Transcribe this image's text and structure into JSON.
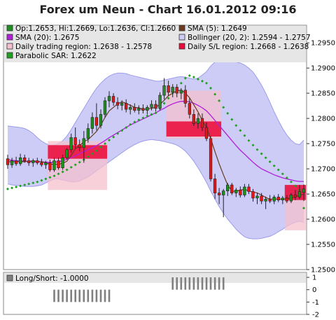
{
  "chart": {
    "title": "Forex um Neun - Chart 16.01.2012 09:16"
  },
  "colors": {
    "bull": "#1f8f1f",
    "bear": "#e01818",
    "sma5": "#6b3a1f",
    "sma20": "#b020d8",
    "bollinger_fill": "#ccccf6",
    "bollinger_edge": "#9c9cec",
    "trading_region": "#f6c0ce",
    "sl_region": "#ea0b3a",
    "sar": "#1fa01f",
    "legend_bg": "#e6e6e6",
    "longshort_bar": "#808080"
  },
  "chart_data": [
    {
      "type": "candlestick",
      "legend": [
        {
          "label": "Op:1.2653, Hi:1.2669, Lo:1.2636, Cl:1.2660",
          "swatch": "ohlc-icon"
        },
        {
          "label": "SMA (5): 1.2649",
          "swatch": "sma5-icon"
        },
        {
          "label": "SMA (20): 1.2675",
          "swatch": "sma20-icon"
        },
        {
          "label": "Bollinger (20, 2): 1.2594 - 1.2757",
          "swatch": "bollinger-icon"
        },
        {
          "label": "Daily trading region: 1.2638 - 1.2578",
          "swatch": "trading-region-icon"
        },
        {
          "label": "Daily S/L region: 1.2668 - 1.2638",
          "swatch": "sl-region-icon"
        },
        {
          "label": "Parabolic SAR: 1.2622",
          "swatch": "sar-icon"
        }
      ],
      "ylim": [
        1.25,
        1.2985
      ],
      "yticks": [
        "1.2500",
        "1.2550",
        "1.2600",
        "1.2650",
        "1.2700",
        "1.2750",
        "1.2800",
        "1.2850",
        "1.2900",
        "1.2950"
      ],
      "ohlc": [
        [
          1.272,
          1.2728,
          1.27,
          1.2708
        ],
        [
          1.2708,
          1.2722,
          1.2702,
          1.2716
        ],
        [
          1.2716,
          1.2724,
          1.2706,
          1.271
        ],
        [
          1.271,
          1.273,
          1.2706,
          1.2722
        ],
        [
          1.2722,
          1.2728,
          1.2712,
          1.2716
        ],
        [
          1.2716,
          1.2722,
          1.2706,
          1.2712
        ],
        [
          1.2712,
          1.272,
          1.2704,
          1.2716
        ],
        [
          1.2716,
          1.2722,
          1.2708,
          1.2712
        ],
        [
          1.2712,
          1.272,
          1.2704,
          1.2708
        ],
        [
          1.2708,
          1.2716,
          1.27,
          1.2712
        ],
        [
          1.2712,
          1.2718,
          1.2694,
          1.2698
        ],
        [
          1.2698,
          1.2722,
          1.2694,
          1.2716
        ],
        [
          1.2716,
          1.2722,
          1.2698,
          1.2702
        ],
        [
          1.2702,
          1.2728,
          1.2698,
          1.2722
        ],
        [
          1.2722,
          1.2742,
          1.2718,
          1.2738
        ],
        [
          1.2738,
          1.277,
          1.2732,
          1.2762
        ],
        [
          1.2762,
          1.2782,
          1.274,
          1.2748
        ],
        [
          1.2748,
          1.2758,
          1.2735,
          1.2742
        ],
        [
          1.2742,
          1.2775,
          1.2712,
          1.276
        ],
        [
          1.276,
          1.279,
          1.2752,
          1.278
        ],
        [
          1.278,
          1.2812,
          1.277,
          1.2802
        ],
        [
          1.2802,
          1.283,
          1.2776,
          1.2786
        ],
        [
          1.2786,
          1.2818,
          1.278,
          1.2808
        ],
        [
          1.2808,
          1.2842,
          1.2802,
          1.2835
        ],
        [
          1.2835,
          1.2854,
          1.2822,
          1.2844
        ],
        [
          1.2844,
          1.285,
          1.2825,
          1.2832
        ],
        [
          1.2832,
          1.2842,
          1.2818,
          1.2826
        ],
        [
          1.2826,
          1.2836,
          1.2816,
          1.283
        ],
        [
          1.283,
          1.2838,
          1.2812,
          1.2818
        ],
        [
          1.2818,
          1.2828,
          1.2808,
          1.2822
        ],
        [
          1.2822,
          1.283,
          1.2812,
          1.2816
        ],
        [
          1.2816,
          1.2826,
          1.2808,
          1.282
        ],
        [
          1.282,
          1.2828,
          1.281,
          1.2816
        ],
        [
          1.2816,
          1.2826,
          1.2808,
          1.2822
        ],
        [
          1.2822,
          1.2836,
          1.2816,
          1.2828
        ],
        [
          1.2828,
          1.2836,
          1.2814,
          1.282
        ],
        [
          1.282,
          1.2852,
          1.2816,
          1.2846
        ],
        [
          1.2846,
          1.288,
          1.2838,
          1.2865
        ],
        [
          1.2865,
          1.2875,
          1.2845,
          1.2852
        ],
        [
          1.2852,
          1.2868,
          1.2842,
          1.2862
        ],
        [
          1.2862,
          1.2868,
          1.2842,
          1.285
        ],
        [
          1.285,
          1.286,
          1.2838,
          1.2856
        ],
        [
          1.2856,
          1.2866,
          1.2822,
          1.283
        ],
        [
          1.283,
          1.284,
          1.28,
          1.2808
        ],
        [
          1.2808,
          1.2818,
          1.2785,
          1.279
        ],
        [
          1.279,
          1.281,
          1.278,
          1.28
        ],
        [
          1.28,
          1.281,
          1.2775,
          1.2782
        ],
        [
          1.2782,
          1.2792,
          1.2755,
          1.276
        ],
        [
          1.276,
          1.2765,
          1.2675,
          1.268
        ],
        [
          1.268,
          1.269,
          1.264,
          1.2652
        ],
        [
          1.2652,
          1.2662,
          1.263,
          1.2648
        ],
        [
          1.2648,
          1.266,
          1.2604,
          1.2656
        ],
        [
          1.2656,
          1.2672,
          1.2646,
          1.2668
        ],
        [
          1.2668,
          1.2672,
          1.2648,
          1.2652
        ],
        [
          1.2652,
          1.2662,
          1.2644,
          1.2658
        ],
        [
          1.2658,
          1.2665,
          1.2643,
          1.2648
        ],
        [
          1.2648,
          1.267,
          1.2644,
          1.2664
        ],
        [
          1.2664,
          1.267,
          1.265,
          1.2655
        ],
        [
          1.2655,
          1.266,
          1.2635,
          1.2642
        ],
        [
          1.2642,
          1.2652,
          1.263,
          1.2646
        ],
        [
          1.2646,
          1.2652,
          1.263,
          1.2636
        ],
        [
          1.2636,
          1.2645,
          1.262,
          1.264
        ],
        [
          1.264,
          1.2648,
          1.2632,
          1.2636
        ],
        [
          1.2636,
          1.2648,
          1.263,
          1.2644
        ],
        [
          1.2644,
          1.265,
          1.2634,
          1.2638
        ],
        [
          1.2638,
          1.2646,
          1.263,
          1.2642
        ],
        [
          1.2642,
          1.2648,
          1.2632,
          1.2636
        ],
        [
          1.2636,
          1.2652,
          1.2632,
          1.2648
        ],
        [
          1.2648,
          1.2658,
          1.2638,
          1.2644
        ],
        [
          1.2644,
          1.2668,
          1.264,
          1.2655
        ],
        [
          1.2653,
          1.2669,
          1.2636,
          1.266
        ]
      ],
      "sma5": [
        1.2714,
        1.2714,
        1.2714,
        1.2714,
        1.2714,
        1.2715,
        1.2716,
        1.2715,
        1.2714,
        1.2712,
        1.2709,
        1.2709,
        1.2709,
        1.2711,
        1.2715,
        1.2727,
        1.274,
        1.2746,
        1.2754,
        1.2758,
        1.2766,
        1.2774,
        1.2787,
        1.2802,
        1.2815,
        1.2822,
        1.2829,
        1.2833,
        1.283,
        1.2826,
        1.2822,
        1.2821,
        1.2818,
        1.2819,
        1.282,
        1.2822,
        1.2828,
        1.2836,
        1.2845,
        1.285,
        1.2855,
        1.2856,
        1.285,
        1.2841,
        1.2827,
        1.2813,
        1.2796,
        1.2782,
        1.276,
        1.2734,
        1.271,
        1.2688,
        1.2668,
        1.2656,
        1.2655,
        1.2658,
        1.2659,
        1.2656,
        1.2654,
        1.2652,
        1.2648,
        1.2643,
        1.264,
        1.264,
        1.264,
        1.264,
        1.264,
        1.2642,
        1.2644,
        1.2648,
        1.2649
      ],
      "sma20": [
        1.2718,
        1.2717,
        1.2716,
        1.2716,
        1.2715,
        1.2715,
        1.2714,
        1.2714,
        1.2714,
        1.2713,
        1.2713,
        1.2713,
        1.2714,
        1.2716,
        1.2719,
        1.2722,
        1.2726,
        1.273,
        1.2734,
        1.2738,
        1.2742,
        1.2746,
        1.2751,
        1.2756,
        1.2762,
        1.2767,
        1.2772,
        1.2777,
        1.2782,
        1.2787,
        1.2791,
        1.2795,
        1.2799,
        1.2803,
        1.2807,
        1.2811,
        1.2816,
        1.282,
        1.2825,
        1.2829,
        1.2832,
        1.2834,
        1.2834,
        1.2833,
        1.283,
        1.2826,
        1.2821,
        1.2815,
        1.2806,
        1.2796,
        1.2786,
        1.2776,
        1.2766,
        1.2756,
        1.2746,
        1.2737,
        1.2729,
        1.2721,
        1.2713,
        1.2706,
        1.27,
        1.2696,
        1.2692,
        1.2688,
        1.2685,
        1.2682,
        1.268,
        1.2678,
        1.2676,
        1.2675,
        1.2675
      ],
      "bollinger_upper": [
        1.2785,
        1.2784,
        1.2783,
        1.2782,
        1.278,
        1.2776,
        1.277,
        1.2762,
        1.2755,
        1.275,
        1.2747,
        1.2747,
        1.275,
        1.2756,
        1.2765,
        1.2778,
        1.2792,
        1.2806,
        1.282,
        1.2834,
        1.2848,
        1.286,
        1.287,
        1.2878,
        1.2884,
        1.2888,
        1.289,
        1.289,
        1.2889,
        1.2886,
        1.2884,
        1.2882,
        1.288,
        1.2878,
        1.2876,
        1.2874,
        1.2874,
        1.2876,
        1.2878,
        1.288,
        1.2882,
        1.2883,
        1.2882,
        1.288,
        1.2878,
        1.288,
        1.2886,
        1.2893,
        1.2904,
        1.2912,
        1.2916,
        1.2917,
        1.2916,
        1.2914,
        1.2912,
        1.291,
        1.2906,
        1.29,
        1.2892,
        1.288,
        1.2866,
        1.285,
        1.2832,
        1.2813,
        1.2796,
        1.278,
        1.2767,
        1.2757,
        1.275,
        1.2748,
        1.2757
      ],
      "bollinger_lower": [
        1.267,
        1.2668,
        1.2667,
        1.2666,
        1.2665,
        1.2665,
        1.2665,
        1.2666,
        1.2668,
        1.2672,
        1.2676,
        1.268,
        1.268,
        1.2678,
        1.2676,
        1.2674,
        1.2674,
        1.2676,
        1.268,
        1.2684,
        1.269,
        1.2696,
        1.2702,
        1.2708,
        1.2714,
        1.272,
        1.2726,
        1.2732,
        1.2738,
        1.2743,
        1.2748,
        1.2752,
        1.2755,
        1.2757,
        1.2758,
        1.2757,
        1.2756,
        1.2754,
        1.2752,
        1.275,
        1.2747,
        1.2742,
        1.2735,
        1.2726,
        1.2715,
        1.2702,
        1.2688,
        1.2673,
        1.2656,
        1.264,
        1.2625,
        1.2612,
        1.26,
        1.259,
        1.258,
        1.2572,
        1.2565,
        1.2562,
        1.2561,
        1.2561,
        1.2562,
        1.2564,
        1.2566,
        1.257,
        1.2575,
        1.258,
        1.2586,
        1.259,
        1.2594,
        1.2596,
        1.2594
      ],
      "sar": [
        1.266,
        1.2662,
        1.2664,
        1.2666,
        1.2668,
        1.267,
        1.2672,
        1.2674,
        1.2677,
        1.268,
        1.2683,
        1.2686,
        1.269,
        1.2694,
        1.2698,
        1.2703,
        1.2708,
        1.2713,
        1.2718,
        1.2724,
        1.273,
        1.2736,
        1.2743,
        1.275,
        1.2757,
        1.2763,
        1.277,
        1.2776,
        1.2782,
        1.2788,
        1.2793,
        1.2797,
        1.2801,
        1.2805,
        1.2808,
        1.2811,
        1.282,
        1.283,
        1.284,
        1.285,
        1.286,
        1.287,
        1.288,
        1.2885,
        1.2882,
        1.2878,
        1.2874,
        1.287,
        1.286,
        1.2848,
        1.2835,
        1.2822,
        1.281,
        1.2798,
        1.2786,
        1.2776,
        1.2766,
        1.2756,
        1.2747,
        1.2738,
        1.273,
        1.2722,
        1.2714,
        1.2706,
        1.2698,
        1.269,
        1.2682,
        1.2674,
        1.2666,
        1.2658,
        1.2622
      ],
      "regions": [
        {
          "kind": "trading",
          "start": 10,
          "end": 23,
          "low": 1.2658,
          "high": 1.2755
        },
        {
          "kind": "sl",
          "start": 10,
          "end": 23,
          "low": 1.272,
          "high": 1.2747
        },
        {
          "kind": "trading",
          "start": 38,
          "end": 50,
          "low": 1.276,
          "high": 1.2855
        },
        {
          "kind": "sl",
          "start": 38,
          "end": 50,
          "low": 1.2764,
          "high": 1.2794
        },
        {
          "kind": "trading",
          "start": 66,
          "end": 70,
          "low": 1.2578,
          "high": 1.2638
        },
        {
          "kind": "sl",
          "start": 66,
          "end": 70,
          "low": 1.2638,
          "high": 1.2668
        }
      ]
    },
    {
      "type": "bar",
      "legend_label": "Long/Short: -1.0000",
      "ylim": [
        -2,
        1.4
      ],
      "yticks": [
        "1",
        "0",
        "-1",
        "-2"
      ],
      "segments": [
        {
          "start": 11,
          "end": 24,
          "value": -1
        },
        {
          "start": 39,
          "end": 51,
          "value": 1
        }
      ]
    }
  ]
}
